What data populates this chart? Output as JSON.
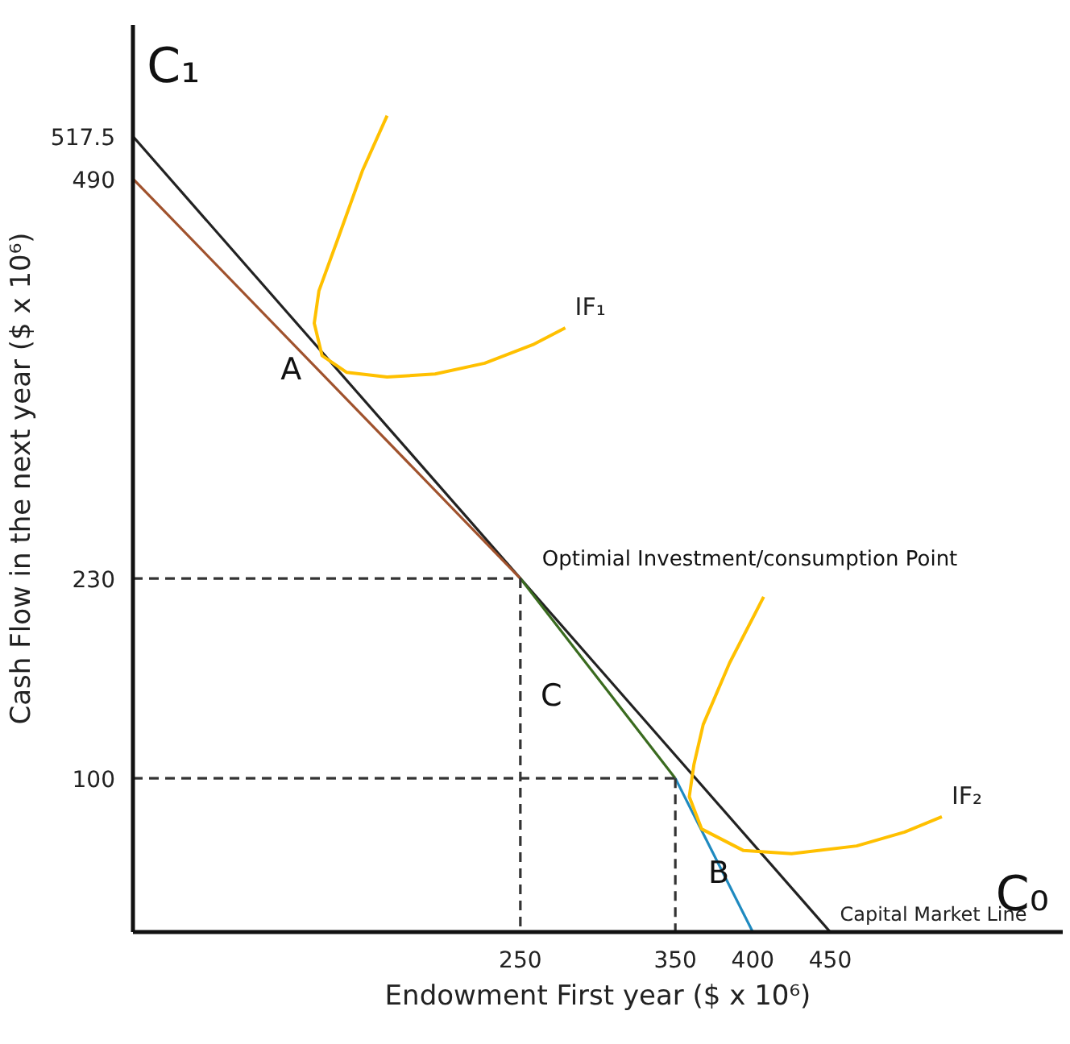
{
  "chart_data": {
    "type": "line",
    "xlabel": "Endowment First year ($ x 10⁶)",
    "ylabel": "Cash Flow in the next year ($ x 10⁶)",
    "xlim": [
      0,
      600
    ],
    "ylim": [
      0,
      590
    ],
    "xticks": [
      250,
      350,
      400,
      450
    ],
    "yticks": [
      100,
      230,
      490,
      517.5
    ],
    "series": [
      {
        "name": "Capital Market Line",
        "color": "#222222",
        "x": [
          0,
          450
        ],
        "values": [
          517.5,
          0
        ]
      },
      {
        "color": "#a0522d",
        "x": [
          0,
          250
        ],
        "values": [
          490,
          230
        ]
      },
      {
        "color": "#3a6b1f",
        "x": [
          250,
          350
        ],
        "values": [
          230,
          100
        ]
      },
      {
        "color": "#1f8ac0",
        "x": [
          350,
          400
        ],
        "values": [
          100,
          0
        ]
      },
      {
        "name": "IF₁",
        "color": "#ffc000",
        "x": [
          164,
          148,
          133,
          120,
          117,
          122,
          138,
          164,
          195,
          227,
          258,
          279
        ],
        "values": [
          531,
          495,
          453,
          417,
          396,
          375,
          364,
          361,
          363,
          370,
          382,
          393
        ]
      },
      {
        "name": "IF₂",
        "color": "#ffc000",
        "x": [
          407,
          385,
          368,
          362,
          359,
          367,
          394,
          425,
          467,
          498,
          522
        ],
        "values": [
          218,
          175,
          135,
          109,
          88,
          67,
          53,
          51,
          56,
          65,
          75
        ]
      },
      {
        "color": "#333333",
        "line_style": "dashed",
        "x": [
          0,
          250
        ],
        "values": [
          230,
          230
        ]
      },
      {
        "color": "#333333",
        "line_style": "dashed",
        "x": [
          250,
          250
        ],
        "values": [
          230,
          0
        ]
      },
      {
        "color": "#333333",
        "line_style": "dashed",
        "x": [
          0,
          350
        ],
        "values": [
          100,
          100
        ]
      },
      {
        "color": "#333333",
        "line_style": "dashed",
        "x": [
          350,
          350
        ],
        "values": [
          100,
          0
        ]
      }
    ],
    "annotations": [
      "C₁",
      "C₀",
      "A",
      "C",
      "B",
      "Optimial Investment/consumption Point"
    ],
    "grid": false
  }
}
